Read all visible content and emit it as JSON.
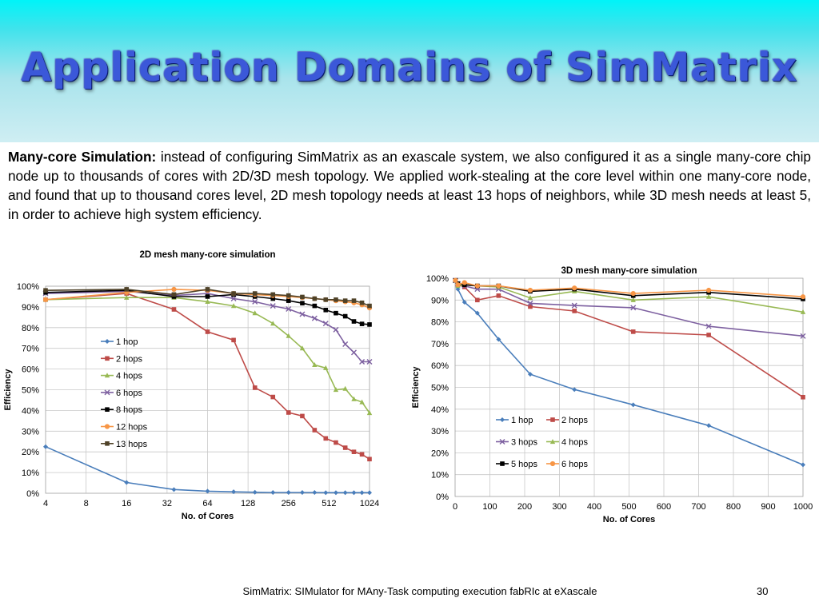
{
  "slide": {
    "title": "Application Domains of SimMatrix",
    "intro_lead": "Many-core Simulation:",
    "intro_text": " instead of configuring SimMatrix as an exascale system, we also configured it as a single many-core chip node up to thousands of cores with 2D/3D mesh topology. We applied work-stealing at the core level within one many-core node, and found that up to thousand cores level, 2D mesh topology needs at least 13 hops of neighbors, while 3D mesh needs at least 5, in order to achieve high system efficiency.",
    "footer": "SimMatrix: SIMulator for MAny-Task computing execution fabRIc at eXascale",
    "page_number": "30"
  },
  "chart_data": [
    {
      "type": "line",
      "title": "2D mesh many-core simulation",
      "xlabel": "No. of Cores",
      "ylabel": "Efficiency",
      "x_scale": "log2",
      "xlim": [
        4,
        1024
      ],
      "ylim": [
        0,
        100
      ],
      "x_ticks": [
        "4",
        "8",
        "16",
        "32",
        "64",
        "128",
        "256",
        "512",
        "1024"
      ],
      "y_ticks": [
        "0%",
        "10%",
        "20%",
        "30%",
        "40%",
        "50%",
        "60%",
        "70%",
        "80%",
        "90%",
        "100%"
      ],
      "grid": true,
      "legend_position": "left-inside",
      "series": [
        {
          "name": "1 hop",
          "color": "#4a7ebb",
          "marker": "diamond",
          "x": [
            4,
            16,
            36,
            64,
            100,
            144,
            196,
            256,
            324,
            400,
            484,
            576,
            676,
            784,
            900,
            1024
          ],
          "y": [
            22.5,
            5.2,
            1.8,
            1.0,
            0.7,
            0.5,
            0.4,
            0.4,
            0.4,
            0.4,
            0.3,
            0.3,
            0.3,
            0.3,
            0.3,
            0.3
          ]
        },
        {
          "name": "2 hops",
          "color": "#be4b48",
          "marker": "square",
          "x": [
            4,
            16,
            36,
            64,
            100,
            144,
            196,
            256,
            324,
            400,
            484,
            576,
            676,
            784,
            900,
            1024
          ],
          "y": [
            93.5,
            96.5,
            88.8,
            78,
            74,
            51,
            46.5,
            39,
            37.3,
            30.5,
            26.5,
            24.5,
            22,
            20,
            18.8,
            16.5
          ]
        },
        {
          "name": "4 hops",
          "color": "#98b954",
          "marker": "triangle",
          "x": [
            4,
            16,
            36,
            64,
            100,
            144,
            196,
            256,
            324,
            400,
            484,
            576,
            676,
            784,
            900,
            1024
          ],
          "y": [
            93.5,
            94.5,
            94.5,
            92.5,
            90.5,
            87,
            82,
            76,
            70,
            62,
            60.5,
            50,
            50.5,
            45.5,
            44,
            38.8
          ]
        },
        {
          "name": "6 hops",
          "color": "#7d60a0",
          "marker": "x",
          "x": [
            4,
            16,
            36,
            64,
            100,
            144,
            196,
            256,
            324,
            400,
            484,
            576,
            676,
            784,
            900,
            1024
          ],
          "y": [
            96.5,
            97.5,
            95.5,
            96.5,
            94,
            92.5,
            90.5,
            89,
            86.5,
            84.5,
            82,
            79,
            72,
            68,
            63.5,
            63.5
          ]
        },
        {
          "name": "8 hops",
          "color": "#000000",
          "marker": "square",
          "x": [
            4,
            16,
            36,
            64,
            100,
            144,
            196,
            256,
            324,
            400,
            484,
            576,
            676,
            784,
            900,
            1024
          ],
          "y": [
            97,
            98,
            95,
            95,
            96,
            95,
            94,
            93,
            91.8,
            90.5,
            88.5,
            87,
            85.5,
            83,
            81.8,
            81.5
          ]
        },
        {
          "name": "12 hops",
          "color": "#f79646",
          "marker": "circle",
          "x": [
            4,
            16,
            36,
            64,
            100,
            144,
            196,
            256,
            324,
            400,
            484,
            576,
            676,
            784,
            900,
            1024
          ],
          "y": [
            93.5,
            97,
            98.5,
            98,
            96.5,
            96,
            95.5,
            95,
            94.5,
            94,
            93.5,
            93,
            92.5,
            92,
            91,
            89.5
          ]
        },
        {
          "name": "13 hops",
          "color": "#4f4228",
          "marker": "square",
          "x": [
            4,
            16,
            36,
            64,
            100,
            144,
            196,
            256,
            324,
            400,
            484,
            576,
            676,
            784,
            900,
            1024
          ],
          "y": [
            98,
            98.5,
            96,
            98.5,
            96.5,
            96.5,
            96,
            95.5,
            94.8,
            94,
            93.5,
            93.5,
            93,
            93,
            92,
            90.5
          ]
        }
      ]
    },
    {
      "type": "line",
      "title": "3D mesh many-core simulation",
      "xlabel": "No. of Cores",
      "ylabel": "Efficiency",
      "x_scale": "linear",
      "xlim": [
        0,
        1000
      ],
      "ylim": [
        0,
        100
      ],
      "x_ticks": [
        "0",
        "100",
        "200",
        "300",
        "400",
        "500",
        "600",
        "700",
        "800",
        "900",
        "1000"
      ],
      "y_ticks": [
        "0%",
        "10%",
        "20%",
        "30%",
        "40%",
        "50%",
        "60%",
        "70%",
        "80%",
        "90%",
        "100%"
      ],
      "grid": true,
      "legend_position": "center-inside",
      "series": [
        {
          "name": "1 hop",
          "color": "#4a7ebb",
          "marker": "diamond",
          "x": [
            1,
            8,
            27,
            64,
            125,
            216,
            343,
            512,
            729,
            1000
          ],
          "y": [
            99,
            95,
            89,
            84,
            72,
            56,
            49,
            42,
            32.5,
            14.5
          ]
        },
        {
          "name": "2 hops",
          "color": "#be4b48",
          "marker": "square",
          "x": [
            1,
            8,
            27,
            64,
            125,
            216,
            343,
            512,
            729,
            1000
          ],
          "y": [
            99,
            97,
            96,
            90,
            92,
            87,
            85,
            75.5,
            74,
            45.5
          ]
        },
        {
          "name": "3 hops",
          "color": "#7d60a0",
          "marker": "x",
          "x": [
            1,
            8,
            27,
            64,
            125,
            216,
            343,
            512,
            729,
            1000
          ],
          "y": [
            99,
            97.5,
            96.5,
            95,
            95,
            88.5,
            87.5,
            86.5,
            78,
            73.5
          ]
        },
        {
          "name": "4 hops",
          "color": "#98b954",
          "marker": "triangle",
          "x": [
            1,
            8,
            27,
            64,
            125,
            216,
            343,
            512,
            729,
            1000
          ],
          "y": [
            99,
            96.5,
            97,
            96.5,
            96,
            91,
            94,
            90,
            91.5,
            84.5
          ]
        },
        {
          "name": "5 hops",
          "color": "#000000",
          "marker": "square",
          "x": [
            1,
            8,
            27,
            64,
            125,
            216,
            343,
            512,
            729,
            1000
          ],
          "y": [
            99,
            97.5,
            97,
            96.5,
            96.5,
            94,
            95,
            92,
            93.5,
            90.5
          ]
        },
        {
          "name": "6 hops",
          "color": "#f79646",
          "marker": "circle",
          "x": [
            1,
            8,
            27,
            64,
            125,
            216,
            343,
            512,
            729,
            1000
          ],
          "y": [
            99,
            97,
            98,
            96.5,
            96.5,
            94.5,
            95.5,
            93,
            94.5,
            91.5
          ]
        }
      ]
    }
  ]
}
